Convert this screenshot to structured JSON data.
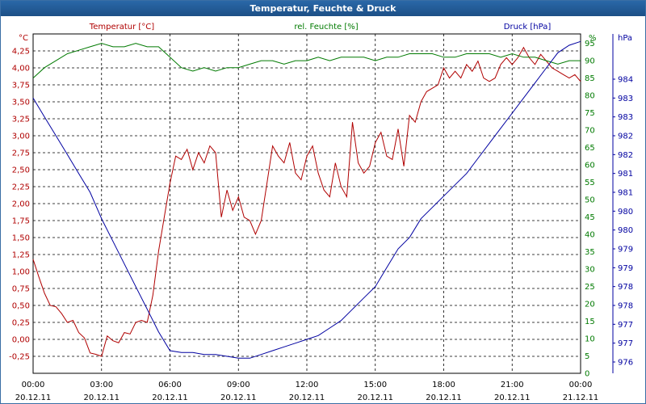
{
  "window": {
    "title": "Temperatur, Feuchte & Druck"
  },
  "chart_data": {
    "type": "line",
    "title": "Temperatur, Feuchte & Druck",
    "colors": {
      "temperature": "#b00000",
      "humidity": "#007a00",
      "pressure": "#0000a0",
      "title_bg": "#1c4f86",
      "frame": "#3a6ea5"
    },
    "axes": {
      "left": {
        "unit_label": "°C",
        "series_label": "Temperatur [°C]",
        "min": -0.5,
        "max": 4.5,
        "ticks": [
          "-0,25",
          "0,00",
          "0,25",
          "0,50",
          "0,75",
          "1,00",
          "1,25",
          "1,50",
          "1,75",
          "2,00",
          "2,25",
          "2,50",
          "2,75",
          "3,00",
          "3,25",
          "3,50",
          "3,75",
          "4,00",
          "4,25"
        ]
      },
      "right1": {
        "unit_label": "%",
        "series_label": "rel. Feuchte [%]",
        "min": 0,
        "max": 97.7,
        "ticks": [
          "0",
          "5",
          "10",
          "15",
          "20",
          "25",
          "30",
          "35",
          "40",
          "45",
          "50",
          "55",
          "60",
          "65",
          "70",
          "75",
          "80",
          "85",
          "90",
          "95"
        ]
      },
      "right2": {
        "unit_label": "hPa",
        "series_label": "Druck [hPa]",
        "min": 975.7,
        "max": 984.7,
        "ticks": [
          "976",
          "977",
          "977",
          "978",
          "978",
          "979",
          "979",
          "980",
          "980",
          "981",
          "981",
          "982",
          "982",
          "983",
          "983",
          "984"
        ]
      },
      "x": {
        "min": 0,
        "max": 24,
        "ticks": [
          {
            "time": "00:00",
            "date": "20.12.11"
          },
          {
            "time": "03:00",
            "date": "20.12.11"
          },
          {
            "time": "06:00",
            "date": "20.12.11"
          },
          {
            "time": "09:00",
            "date": "20.12.11"
          },
          {
            "time": "12:00",
            "date": "20.12.11"
          },
          {
            "time": "15:00",
            "date": "20.12.11"
          },
          {
            "time": "18:00",
            "date": "20.12.11"
          },
          {
            "time": "21:00",
            "date": "20.12.11"
          },
          {
            "time": "00:00",
            "date": "21.12.11"
          }
        ]
      }
    },
    "series": [
      {
        "name": "Temperatur [°C]",
        "axis": "left",
        "color": "#b00000",
        "x": [
          0,
          0.25,
          0.5,
          0.75,
          1,
          1.25,
          1.5,
          1.75,
          2,
          2.25,
          2.5,
          2.75,
          3,
          3.25,
          3.5,
          3.75,
          4,
          4.25,
          4.5,
          4.75,
          5,
          5.25,
          5.5,
          5.75,
          6,
          6.25,
          6.5,
          6.75,
          7,
          7.25,
          7.5,
          7.75,
          8,
          8.25,
          8.5,
          8.75,
          9,
          9.25,
          9.5,
          9.75,
          10,
          10.25,
          10.5,
          10.75,
          11,
          11.25,
          11.5,
          11.75,
          12,
          12.25,
          12.5,
          12.75,
          13,
          13.25,
          13.5,
          13.75,
          14,
          14.25,
          14.5,
          14.75,
          15,
          15.25,
          15.5,
          15.75,
          16,
          16.25,
          16.5,
          16.75,
          17,
          17.25,
          17.5,
          17.75,
          18,
          18.25,
          18.5,
          18.75,
          19,
          19.25,
          19.5,
          19.75,
          20,
          20.25,
          20.5,
          20.75,
          21,
          21.25,
          21.5,
          21.75,
          22,
          22.25,
          22.5,
          22.75,
          23,
          23.25,
          23.5,
          23.75,
          24
        ],
        "values": [
          1.18,
          0.92,
          0.68,
          0.5,
          0.48,
          0.38,
          0.25,
          0.28,
          0.1,
          0.02,
          -0.2,
          -0.22,
          -0.25,
          0.05,
          -0.02,
          -0.05,
          0.1,
          0.08,
          0.25,
          0.28,
          0.25,
          0.65,
          1.3,
          1.8,
          2.3,
          2.7,
          2.65,
          2.8,
          2.5,
          2.75,
          2.6,
          2.85,
          2.75,
          1.8,
          2.2,
          1.9,
          2.1,
          1.8,
          1.75,
          1.55,
          1.75,
          2.3,
          2.85,
          2.7,
          2.6,
          2.9,
          2.45,
          2.35,
          2.7,
          2.85,
          2.45,
          2.2,
          2.1,
          2.6,
          2.25,
          2.1,
          3.2,
          2.6,
          2.45,
          2.55,
          2.9,
          3.05,
          2.7,
          2.65,
          3.1,
          2.55,
          3.3,
          3.2,
          3.5,
          3.65,
          3.7,
          3.75,
          4.0,
          3.85,
          3.95,
          3.85,
          4.05,
          3.95,
          4.1,
          3.85,
          3.8,
          3.85,
          4.05,
          4.15,
          4.05,
          4.15,
          4.3,
          4.15,
          4.05,
          4.2,
          4.1,
          4.0,
          3.95,
          3.9,
          3.85,
          3.9,
          3.8
        ],
        "note": "red line"
      },
      {
        "name": "rel. Feuchte [%]",
        "axis": "right1",
        "color": "#007a00",
        "x": [
          0,
          0.5,
          1,
          1.5,
          2,
          2.5,
          3,
          3.5,
          4,
          4.5,
          5,
          5.5,
          6,
          6.5,
          7,
          7.5,
          8,
          8.5,
          9,
          9.5,
          10,
          10.5,
          11,
          11.5,
          12,
          12.5,
          13,
          13.5,
          14,
          14.5,
          15,
          15.5,
          16,
          16.5,
          17,
          17.5,
          18,
          18.5,
          19,
          19.5,
          20,
          20.5,
          21,
          21.5,
          22,
          22.5,
          23,
          23.5,
          24
        ],
        "values": [
          85,
          88,
          90,
          92,
          93,
          94,
          95,
          94,
          94,
          95,
          94,
          94,
          91,
          88,
          87,
          88,
          87,
          88,
          88,
          89,
          90,
          90,
          89,
          90,
          90,
          91,
          90,
          91,
          91,
          91,
          90,
          91,
          91,
          92,
          92,
          92,
          91,
          91,
          92,
          92,
          92,
          91,
          92,
          91,
          91,
          90,
          89,
          90,
          90
        ]
      },
      {
        "name": "Druck [hPa]",
        "axis": "right2",
        "color": "#0000a0",
        "x": [
          0,
          0.5,
          1,
          1.5,
          2,
          2.5,
          3,
          3.5,
          4,
          4.5,
          5,
          5.5,
          6,
          6.5,
          7,
          7.5,
          8,
          8.5,
          9,
          9.5,
          10,
          10.5,
          11,
          11.5,
          12,
          12.5,
          13,
          13.5,
          14,
          14.5,
          15,
          15.5,
          16,
          16.5,
          17,
          17.5,
          18,
          18.5,
          19,
          19.5,
          20,
          20.5,
          21,
          21.5,
          22,
          22.5,
          23,
          23.5,
          24
        ],
        "values": [
          983.0,
          982.5,
          982.0,
          981.5,
          981.0,
          980.5,
          979.8,
          979.2,
          978.6,
          978.0,
          977.4,
          976.8,
          976.3,
          976.25,
          976.25,
          976.2,
          976.2,
          976.15,
          976.1,
          976.1,
          976.2,
          976.3,
          976.4,
          976.5,
          976.6,
          976.7,
          976.9,
          977.1,
          977.4,
          977.7,
          978.0,
          978.5,
          979.0,
          979.3,
          979.8,
          980.1,
          980.4,
          980.7,
          981.0,
          981.4,
          981.8,
          982.2,
          982.6,
          983.0,
          983.4,
          983.8,
          984.2,
          984.4,
          984.5
        ]
      }
    ]
  }
}
